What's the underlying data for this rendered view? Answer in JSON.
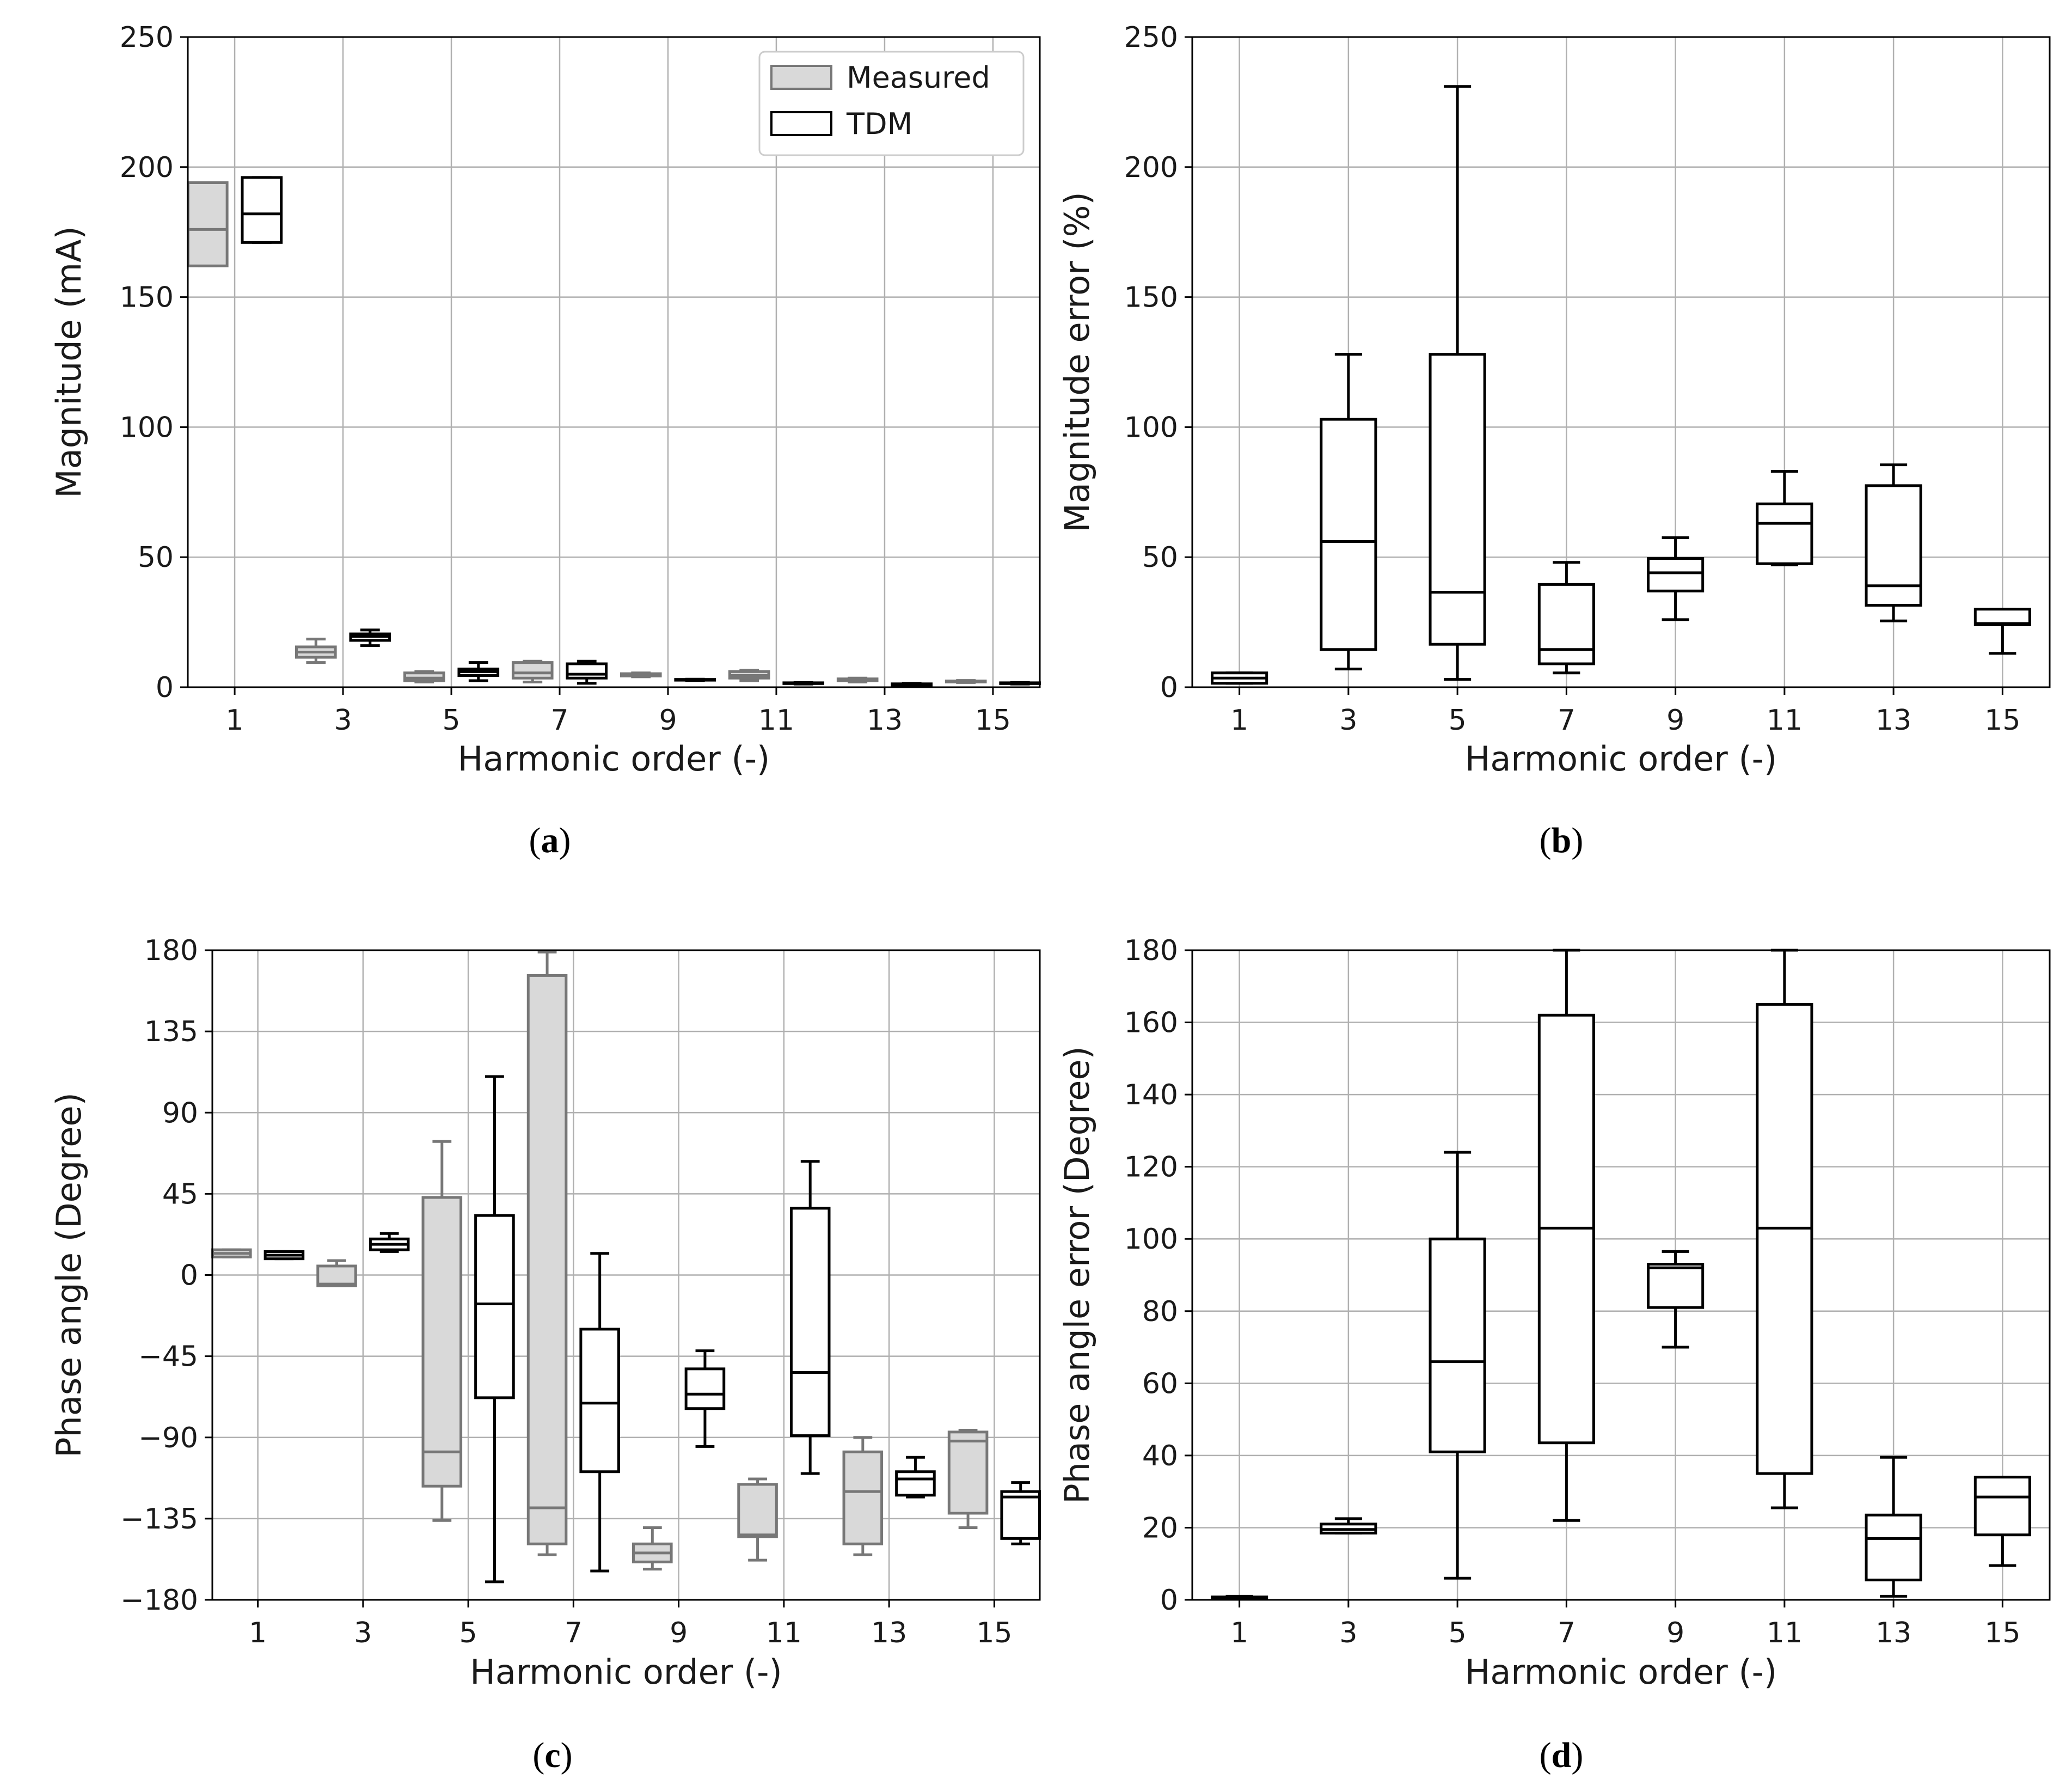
{
  "chart_data": [
    {
      "id": "a",
      "type": "boxplot",
      "caption": "a",
      "xlabel": "Harmonic order (-)",
      "ylabel": "Magnitude (mA)",
      "categories": [
        "1",
        "3",
        "5",
        "7",
        "9",
        "11",
        "13",
        "15"
      ],
      "ylim": [
        0,
        250
      ],
      "yticks": [
        0,
        50,
        100,
        150,
        200,
        250
      ],
      "ytick_labels": [
        "0",
        "50",
        "100",
        "150",
        "200",
        "250"
      ],
      "grid": true,
      "legend": {
        "position": "top-right",
        "entries": [
          {
            "name": "Measured",
            "series": 0
          },
          {
            "name": "TDM",
            "series": 1
          }
        ]
      },
      "series": [
        {
          "name": "Measured",
          "fill": "#d9d9d9",
          "stroke": "#777777",
          "boxes": [
            {
              "whislo": 162,
              "q1": 162,
              "med": 176,
              "q3": 194,
              "whishi": 194
            },
            {
              "whislo": 9.5,
              "q1": 11.5,
              "med": 13.5,
              "q3": 15.5,
              "whishi": 18.5
            },
            {
              "whislo": 2,
              "q1": 2.5,
              "med": 3.5,
              "q3": 5.5,
              "whishi": 6
            },
            {
              "whislo": 2,
              "q1": 3.5,
              "med": 5.5,
              "q3": 9.5,
              "whishi": 10
            },
            {
              "whislo": 4,
              "q1": 4.3,
              "med": 4.8,
              "q3": 5.2,
              "whishi": 5.5
            },
            {
              "whislo": 2.5,
              "q1": 3.5,
              "med": 4.5,
              "q3": 6,
              "whishi": 6.5
            },
            {
              "whislo": 2,
              "q1": 2.5,
              "med": 2.8,
              "q3": 3.2,
              "whishi": 3.5
            },
            {
              "whislo": 1.8,
              "q1": 2,
              "med": 2.2,
              "q3": 2.4,
              "whishi": 2.6
            }
          ]
        },
        {
          "name": "TDM",
          "fill": "#ffffff",
          "stroke": "#000000",
          "boxes": [
            {
              "whislo": 171,
              "q1": 171,
              "med": 182,
              "q3": 196,
              "whishi": 196
            },
            {
              "whislo": 16,
              "q1": 18,
              "med": 19.5,
              "q3": 20.5,
              "whishi": 22
            },
            {
              "whislo": 2.5,
              "q1": 4.5,
              "med": 6,
              "q3": 7,
              "whishi": 9.5
            },
            {
              "whislo": 1.5,
              "q1": 3.5,
              "med": 5,
              "q3": 9,
              "whishi": 10
            },
            {
              "whislo": 2.6,
              "q1": 2.7,
              "med": 2.8,
              "q3": 3,
              "whishi": 3.1
            },
            {
              "whislo": 1.2,
              "q1": 1.4,
              "med": 1.5,
              "q3": 1.7,
              "whishi": 1.8
            },
            {
              "whislo": 0.5,
              "q1": 0.8,
              "med": 1,
              "q3": 1.3,
              "whishi": 1.5
            },
            {
              "whislo": 1.2,
              "q1": 1.4,
              "med": 1.5,
              "q3": 1.7,
              "whishi": 1.8
            }
          ]
        }
      ]
    },
    {
      "id": "b",
      "type": "boxplot",
      "caption": "b",
      "xlabel": "Harmonic order (-)",
      "ylabel": "Magnitude error (%)",
      "categories": [
        "1",
        "3",
        "5",
        "7",
        "9",
        "11",
        "13",
        "15"
      ],
      "ylim": [
        0,
        250
      ],
      "yticks": [
        0,
        50,
        100,
        150,
        200,
        250
      ],
      "ytick_labels": [
        "0",
        "50",
        "100",
        "150",
        "200",
        "250"
      ],
      "grid": true,
      "series": [
        {
          "name": "Magnitude error",
          "fill": "#ffffff",
          "stroke": "#000000",
          "boxes": [
            {
              "whislo": 1.5,
              "q1": 1.5,
              "med": 3.5,
              "q3": 5.5,
              "whishi": 5.5
            },
            {
              "whislo": 7,
              "q1": 14.5,
              "med": 56,
              "q3": 103,
              "whishi": 128
            },
            {
              "whislo": 3,
              "q1": 16.5,
              "med": 36.5,
              "q3": 128,
              "whishi": 231
            },
            {
              "whislo": 5.5,
              "q1": 9,
              "med": 14.5,
              "q3": 39.5,
              "whishi": 48
            },
            {
              "whislo": 26,
              "q1": 37,
              "med": 44,
              "q3": 49.5,
              "whishi": 57.5
            },
            {
              "whislo": 47,
              "q1": 47.5,
              "med": 63,
              "q3": 70.5,
              "whishi": 83
            },
            {
              "whislo": 25.5,
              "q1": 31.5,
              "med": 39,
              "q3": 77.5,
              "whishi": 85.5
            },
            {
              "whislo": 13,
              "q1": 24,
              "med": 24.5,
              "q3": 30,
              "whishi": 30
            }
          ]
        }
      ]
    },
    {
      "id": "c",
      "type": "boxplot",
      "caption": "c",
      "xlabel": "Harmonic order (-)",
      "ylabel": "Phase angle (Degree)",
      "categories": [
        "1",
        "3",
        "5",
        "7",
        "9",
        "11",
        "13",
        "15"
      ],
      "ylim": [
        -180,
        180
      ],
      "yticks": [
        -180,
        -135,
        -90,
        -45,
        0,
        45,
        90,
        135,
        180
      ],
      "ytick_labels": [
        "−180",
        "−135",
        "−90",
        "−45",
        "0",
        "45",
        "90",
        "135",
        "180"
      ],
      "grid": true,
      "series": [
        {
          "name": "Measured",
          "fill": "#d9d9d9",
          "stroke": "#777777",
          "boxes": [
            {
              "whislo": 10,
              "q1": 10,
              "med": 12,
              "q3": 14,
              "whishi": 14
            },
            {
              "whislo": -6,
              "q1": -6,
              "med": -5,
              "q3": 5,
              "whishi": 8
            },
            {
              "whislo": -136,
              "q1": -117,
              "med": -98,
              "q3": 43,
              "whishi": 74
            },
            {
              "whislo": -155,
              "q1": -149,
              "med": -129,
              "q3": 166,
              "whishi": 179
            },
            {
              "whislo": -163,
              "q1": -159,
              "med": -154,
              "q3": -149,
              "whishi": -140
            },
            {
              "whislo": -158,
              "q1": -145,
              "med": -144,
              "q3": -116,
              "whishi": -113
            },
            {
              "whislo": -155,
              "q1": -149,
              "med": -120,
              "q3": -98,
              "whishi": -90
            },
            {
              "whislo": -140,
              "q1": -132,
              "med": -92,
              "q3": -87,
              "whishi": -86
            }
          ]
        },
        {
          "name": "TDM",
          "fill": "#ffffff",
          "stroke": "#000000",
          "boxes": [
            {
              "whislo": 9,
              "q1": 9,
              "med": 11,
              "q3": 13,
              "whishi": 13
            },
            {
              "whislo": 13,
              "q1": 14,
              "med": 17,
              "q3": 20,
              "whishi": 23
            },
            {
              "whislo": -170,
              "q1": -68,
              "med": -16,
              "q3": 33,
              "whishi": 110
            },
            {
              "whislo": -164,
              "q1": -109,
              "med": -71,
              "q3": -30,
              "whishi": 12
            },
            {
              "whislo": -95,
              "q1": -74,
              "med": -66,
              "q3": -52,
              "whishi": -42
            },
            {
              "whislo": -110,
              "q1": -89,
              "med": -54,
              "q3": 37,
              "whishi": 63
            },
            {
              "whislo": -123,
              "q1": -122,
              "med": -113,
              "q3": -109,
              "whishi": -101
            },
            {
              "whislo": -149,
              "q1": -146,
              "med": -123,
              "q3": -120,
              "whishi": -115
            }
          ]
        }
      ]
    },
    {
      "id": "d",
      "type": "boxplot",
      "caption": "d",
      "xlabel": "Harmonic order (-)",
      "ylabel": "Phase angle error (Degree)",
      "categories": [
        "1",
        "3",
        "5",
        "7",
        "9",
        "11",
        "13",
        "15"
      ],
      "ylim": [
        0,
        180
      ],
      "yticks": [
        0,
        20,
        40,
        60,
        80,
        100,
        120,
        140,
        160,
        180
      ],
      "ytick_labels": [
        "0",
        "20",
        "40",
        "60",
        "80",
        "100",
        "120",
        "140",
        "160",
        "180"
      ],
      "grid": true,
      "series": [
        {
          "name": "Phase angle error",
          "fill": "#ffffff",
          "stroke": "#000000",
          "boxes": [
            {
              "whislo": 0.2,
              "q1": 0.3,
              "med": 0.5,
              "q3": 0.8,
              "whishi": 1
            },
            {
              "whislo": 18.5,
              "q1": 18.5,
              "med": 19.5,
              "q3": 21,
              "whishi": 22.5
            },
            {
              "whislo": 6,
              "q1": 41,
              "med": 66,
              "q3": 100,
              "whishi": 124
            },
            {
              "whislo": 22,
              "q1": 43.5,
              "med": 103,
              "q3": 162,
              "whishi": 180
            },
            {
              "whislo": 70,
              "q1": 81,
              "med": 92,
              "q3": 93,
              "whishi": 96.5
            },
            {
              "whislo": 25.5,
              "q1": 35,
              "med": 103,
              "q3": 165,
              "whishi": 180
            },
            {
              "whislo": 1,
              "q1": 5.5,
              "med": 17,
              "q3": 23.5,
              "whishi": 39.5
            },
            {
              "whislo": 9.5,
              "q1": 18,
              "med": 28.5,
              "q3": 34,
              "whishi": 34
            }
          ]
        }
      ]
    }
  ]
}
